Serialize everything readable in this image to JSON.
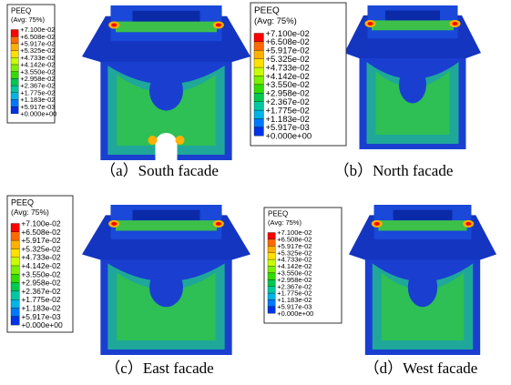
{
  "panels": [
    {
      "legend_title": "PEEQ",
      "legend_subtitle": "(Avg: 75%)",
      "levels": [
        "+7.100e-02",
        "+6.508e-02",
        "+5.917e-02",
        "+5.325e-02",
        "+4.733e-02",
        "+4.142e-02",
        "+3.550e-02",
        "+2.958e-02",
        "+2.367e-02",
        "+1.775e-02",
        "+1.183e-02",
        "+5.917e-03",
        "+0.000e+00"
      ],
      "caption": "（a）South facade"
    },
    {
      "legend_title": "PEEQ",
      "legend_subtitle": "(Avg: 75%)",
      "levels": [
        "+7.100e-02",
        "+6.508e-02",
        "+5.917e-02",
        "+5.325e-02",
        "+4.733e-02",
        "+4.142e-02",
        "+3.550e-02",
        "+2.958e-02",
        "+2.367e-02",
        "+1.775e-02",
        "+1.183e-02",
        "+5.917e-03",
        "+0.000e+00"
      ],
      "caption": "（b）North facade"
    },
    {
      "legend_title": "PEEQ",
      "legend_subtitle": "(Avg: 75%)",
      "levels": [
        "+7.100e-02",
        "+6.508e-02",
        "+5.917e-02",
        "+5.325e-02",
        "+4.733e-02",
        "+4.142e-02",
        "+3.550e-02",
        "+2.958e-02",
        "+2.367e-02",
        "+1.775e-02",
        "+1.183e-02",
        "+5.917e-03",
        "+0.000e+00"
      ],
      "caption": "（c）East facade"
    },
    {
      "legend_title": "PEEQ",
      "legend_subtitle": "(Avg: 75%)",
      "levels": [
        "+7.100e-02",
        "+6.508e-02",
        "+5.917e-02",
        "+5.325e-02",
        "+4.733e-02",
        "+4.142e-02",
        "+3.550e-02",
        "+2.958e-02",
        "+2.367e-02",
        "+1.775e-02",
        "+1.183e-02",
        "+5.917e-03",
        "+0.000e+00"
      ],
      "caption": "（d）West facade"
    }
  ]
}
